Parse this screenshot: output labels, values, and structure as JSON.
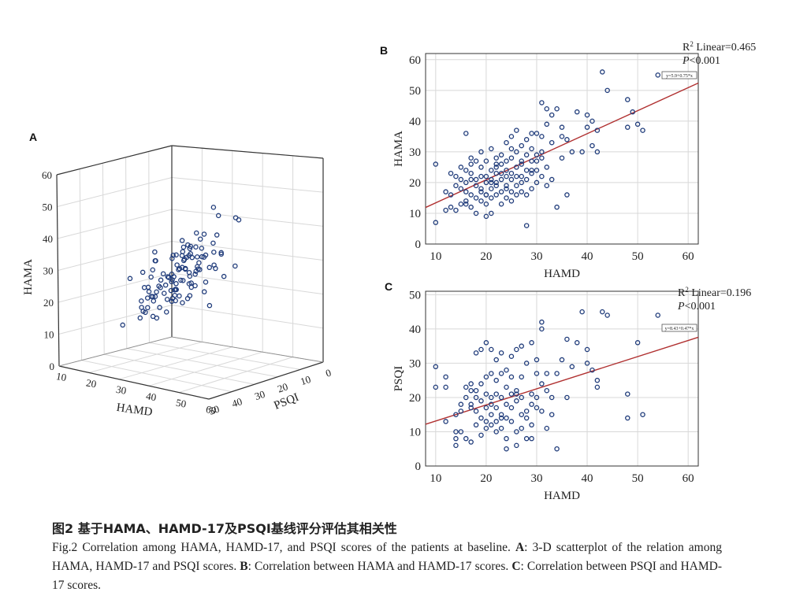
{
  "panels": {
    "a": {
      "label": "A"
    },
    "b": {
      "label": "B"
    },
    "c": {
      "label": "C"
    }
  },
  "colors": {
    "point": "#1f3b7a",
    "fit": "#b03030",
    "grid": "#d8d8d8",
    "axis": "#333333"
  },
  "chart_data": [
    {
      "id": "A",
      "type": "scatter3d",
      "xlabel": "HAMD",
      "ylabel": "HAMA",
      "zlabel": "PSQI",
      "x_ticks": [
        "10",
        "20",
        "30",
        "40",
        "50",
        "60"
      ],
      "y_ticks": [
        "0",
        "10",
        "20",
        "30",
        "40",
        "50",
        "60"
      ],
      "z_ticks": [
        "50",
        "40",
        "30",
        "20",
        "10",
        "0"
      ],
      "xlim": [
        10,
        60
      ],
      "ylim": [
        0,
        60
      ],
      "zlim": [
        0,
        50
      ],
      "points_hamd": [
        12,
        14,
        15,
        16,
        16,
        17,
        17,
        18,
        18,
        18,
        19,
        19,
        19,
        20,
        20,
        20,
        20,
        21,
        21,
        21,
        22,
        22,
        22,
        22,
        23,
        23,
        23,
        24,
        24,
        24,
        24,
        25,
        25,
        25,
        25,
        26,
        26,
        26,
        26,
        27,
        27,
        27,
        27,
        28,
        28,
        28,
        29,
        29,
        29,
        30,
        30,
        30,
        30,
        31,
        31,
        31,
        32,
        32,
        32,
        33,
        33,
        34,
        34,
        35,
        35,
        36,
        36,
        37,
        38,
        39,
        40,
        41,
        42,
        43,
        44,
        48,
        49,
        50,
        52,
        54,
        15,
        17,
        19,
        21,
        23,
        25,
        27,
        29,
        31,
        33,
        20,
        22,
        24,
        26,
        28,
        30,
        32,
        34,
        18,
        21,
        24,
        27,
        30,
        33,
        36,
        22,
        25,
        28,
        31,
        26,
        29,
        32,
        35,
        38,
        41
      ],
      "points_hama": [
        26,
        12,
        16,
        11,
        22,
        10,
        17,
        22,
        15,
        13,
        20,
        24,
        18,
        16,
        21,
        14,
        26,
        19,
        27,
        23,
        17,
        30,
        21,
        25,
        22,
        18,
        28,
        20,
        24,
        31,
        16,
        26,
        19,
        29,
        23,
        21,
        33,
        27,
        25,
        30,
        18,
        22,
        35,
        28,
        24,
        26,
        32,
        19,
        27,
        36,
        22,
        29,
        34,
        25,
        31,
        20,
        38,
        27,
        23,
        33,
        28,
        40,
        24,
        35,
        30,
        44,
        26,
        37,
        29,
        33,
        40,
        38,
        36,
        30,
        42,
        46,
        38,
        48,
        40,
        56,
        10,
        14,
        18,
        22,
        28,
        32,
        36,
        20,
        26,
        16,
        12,
        16,
        20,
        24,
        28,
        32,
        36,
        24,
        25,
        19,
        14,
        21,
        27,
        34,
        29,
        30,
        24,
        18,
        26,
        22,
        30,
        28,
        33,
        37,
        35
      ],
      "points_psqi": [
        10,
        18,
        14,
        22,
        8,
        16,
        20,
        12,
        24,
        6,
        17,
        9,
        21,
        13,
        19,
        25,
        11,
        15,
        23,
        7,
        18,
        14,
        26,
        10,
        20,
        16,
        12,
        22,
        8,
        18,
        24,
        14,
        28,
        11,
        16,
        20,
        13,
        25,
        9,
        17,
        21,
        15,
        30,
        12,
        19,
        23,
        17,
        11,
        27,
        14,
        18,
        22,
        16,
        26,
        13,
        20,
        15,
        29,
        19,
        24,
        12,
        21,
        17,
        33,
        22,
        14,
        26,
        31,
        18,
        35,
        20,
        28,
        24,
        16,
        38,
        21,
        30,
        25,
        34,
        40,
        15,
        20,
        10,
        25,
        30,
        12,
        18,
        22,
        28,
        14,
        35,
        16,
        27,
        11,
        33,
        19,
        24,
        9,
        29,
        13,
        21,
        36,
        15,
        26,
        18,
        23,
        32,
        17,
        20,
        28,
        12,
        34,
        22,
        19,
        27
      ]
    },
    {
      "id": "B",
      "type": "scatter",
      "xlabel": "HAMD",
      "ylabel": "HAMA",
      "xlim": [
        8,
        62
      ],
      "ylim": [
        0,
        62
      ],
      "x_ticks": [
        "10",
        "20",
        "30",
        "40",
        "50",
        "60"
      ],
      "y_ticks": [
        "0",
        "10",
        "20",
        "30",
        "40",
        "50",
        "60"
      ],
      "fit": {
        "intercept": 5.9,
        "slope": 0.75,
        "equation": "y=5.9+0.75*x"
      },
      "annotation_r2_label": "R",
      "annotation_r2_sup": "2",
      "annotation_r2_value": " Linear=0.465",
      "annotation_p_italic": "P",
      "annotation_p_value": "<0.001",
      "x": [
        10,
        10,
        12,
        12,
        13,
        13,
        13,
        14,
        14,
        14,
        15,
        15,
        15,
        15,
        16,
        16,
        16,
        16,
        16,
        17,
        17,
        17,
        17,
        17,
        18,
        18,
        18,
        18,
        18,
        19,
        19,
        19,
        19,
        19,
        19,
        20,
        20,
        20,
        20,
        20,
        20,
        21,
        21,
        21,
        21,
        21,
        21,
        22,
        22,
        22,
        22,
        22,
        22,
        23,
        23,
        23,
        23,
        23,
        23,
        24,
        24,
        24,
        24,
        24,
        24,
        25,
        25,
        25,
        25,
        25,
        25,
        26,
        26,
        26,
        26,
        26,
        27,
        27,
        27,
        27,
        27,
        27,
        28,
        28,
        28,
        28,
        28,
        28,
        29,
        29,
        29,
        29,
        29,
        30,
        30,
        30,
        30,
        30,
        31,
        31,
        31,
        31,
        32,
        32,
        32,
        32,
        33,
        33,
        33,
        34,
        34,
        35,
        35,
        36,
        36,
        37,
        38,
        39,
        40,
        40,
        41,
        41,
        42,
        42,
        43,
        44,
        48,
        48,
        49,
        50,
        51,
        54,
        16,
        17,
        21,
        24,
        26,
        29,
        31,
        35,
        20,
        22,
        25
      ],
      "y": [
        7,
        26,
        11,
        17,
        23,
        12,
        16,
        11,
        22,
        19,
        18,
        13,
        25,
        21,
        17,
        36,
        20,
        24,
        13,
        16,
        21,
        28,
        12,
        23,
        15,
        21,
        19,
        10,
        27,
        17,
        22,
        14,
        30,
        18,
        25,
        20,
        9,
        16,
        22,
        27,
        13,
        18,
        24,
        15,
        21,
        31,
        10,
        19,
        23,
        28,
        16,
        25,
        20,
        13,
        23,
        29,
        17,
        21,
        26,
        22,
        15,
        33,
        19,
        24,
        27,
        17,
        21,
        28,
        14,
        23,
        35,
        19,
        25,
        16,
        30,
        37,
        22,
        17,
        27,
        20,
        26,
        32,
        24,
        16,
        29,
        21,
        34,
        6,
        23,
        18,
        27,
        31,
        36,
        20,
        24,
        36,
        29,
        27,
        35,
        22,
        46,
        30,
        25,
        39,
        19,
        44,
        21,
        42,
        33,
        12,
        44,
        28,
        35,
        34,
        16,
        30,
        43,
        30,
        38,
        42,
        40,
        32,
        30,
        37,
        56,
        50,
        47,
        38,
        43,
        39,
        37,
        55,
        14,
        26,
        20,
        18,
        22,
        24,
        28,
        38,
        16,
        26,
        31
      ]
    },
    {
      "id": "C",
      "type": "scatter",
      "xlabel": "HAMD",
      "ylabel": "PSQI",
      "xlim": [
        8,
        62
      ],
      "ylim": [
        0,
        51
      ],
      "x_ticks": [
        "10",
        "20",
        "30",
        "40",
        "50",
        "60"
      ],
      "y_ticks": [
        "0",
        "10",
        "20",
        "30",
        "40",
        "50"
      ],
      "fit": {
        "intercept": 8.43,
        "slope": 0.47,
        "equation": "y=8.43+0.47*x"
      },
      "annotation_r2_label": "R",
      "annotation_r2_sup": "2",
      "annotation_r2_value": " Linear=0.196",
      "annotation_p_italic": "P",
      "annotation_p_value": "<0.001",
      "x": [
        10,
        10,
        12,
        12,
        12,
        14,
        14,
        14,
        14,
        15,
        15,
        16,
        16,
        16,
        17,
        17,
        17,
        17,
        18,
        18,
        18,
        18,
        18,
        19,
        19,
        19,
        19,
        19,
        20,
        20,
        20,
        20,
        20,
        21,
        21,
        21,
        21,
        21,
        22,
        22,
        22,
        22,
        22,
        22,
        23,
        23,
        23,
        23,
        23,
        24,
        24,
        24,
        24,
        24,
        25,
        25,
        25,
        25,
        25,
        26,
        26,
        26,
        26,
        26,
        27,
        27,
        27,
        27,
        28,
        28,
        28,
        28,
        29,
        29,
        29,
        29,
        30,
        30,
        30,
        30,
        31,
        31,
        31,
        31,
        32,
        32,
        32,
        33,
        33,
        34,
        34,
        35,
        36,
        36,
        37,
        38,
        39,
        40,
        40,
        41,
        42,
        42,
        43,
        44,
        48,
        48,
        50,
        51,
        54,
        15,
        17,
        20,
        23,
        26,
        29,
        21,
        24,
        27
      ],
      "y": [
        23,
        29,
        13,
        23,
        26,
        6,
        8,
        10,
        15,
        10,
        16,
        20,
        23,
        8,
        17,
        18,
        24,
        7,
        20,
        16,
        22,
        33,
        12,
        14,
        19,
        9,
        24,
        34,
        17,
        21,
        11,
        13,
        36,
        15,
        20,
        27,
        12,
        34,
        17,
        21,
        10,
        31,
        13,
        25,
        20,
        15,
        11,
        27,
        33,
        18,
        23,
        14,
        8,
        5,
        17,
        21,
        26,
        13,
        32,
        19,
        22,
        10,
        34,
        6,
        20,
        26,
        15,
        35,
        14,
        16,
        30,
        8,
        18,
        21,
        12,
        36,
        27,
        20,
        17,
        31,
        40,
        42,
        16,
        24,
        22,
        27,
        11,
        20,
        15,
        27,
        5,
        31,
        20,
        37,
        29,
        36,
        45,
        34,
        30,
        28,
        25,
        23,
        45,
        44,
        21,
        14,
        36,
        15,
        44,
        18,
        22,
        26,
        14,
        21,
        8,
        18,
        28,
        11
      ]
    }
  ],
  "caption": {
    "cn": "图2 基于HAMA、HAMD-17及PSQI基线评分评估其相关性",
    "en_prefix": "Fig.2  Correlation among HAMA, HAMD-17, and PSQI scores of the patients at baseline. ",
    "a_label": "A",
    "a_text": ": 3-D scatterplot of the relation among HAMA, HAMD-17 and PSQI scores. ",
    "b_label": "B",
    "b_text": ": Correlation between HAMA and HAMD-17 scores. ",
    "c_label": "C",
    "c_text": ": Correlation between PSQI and HAMD-17 scores."
  }
}
